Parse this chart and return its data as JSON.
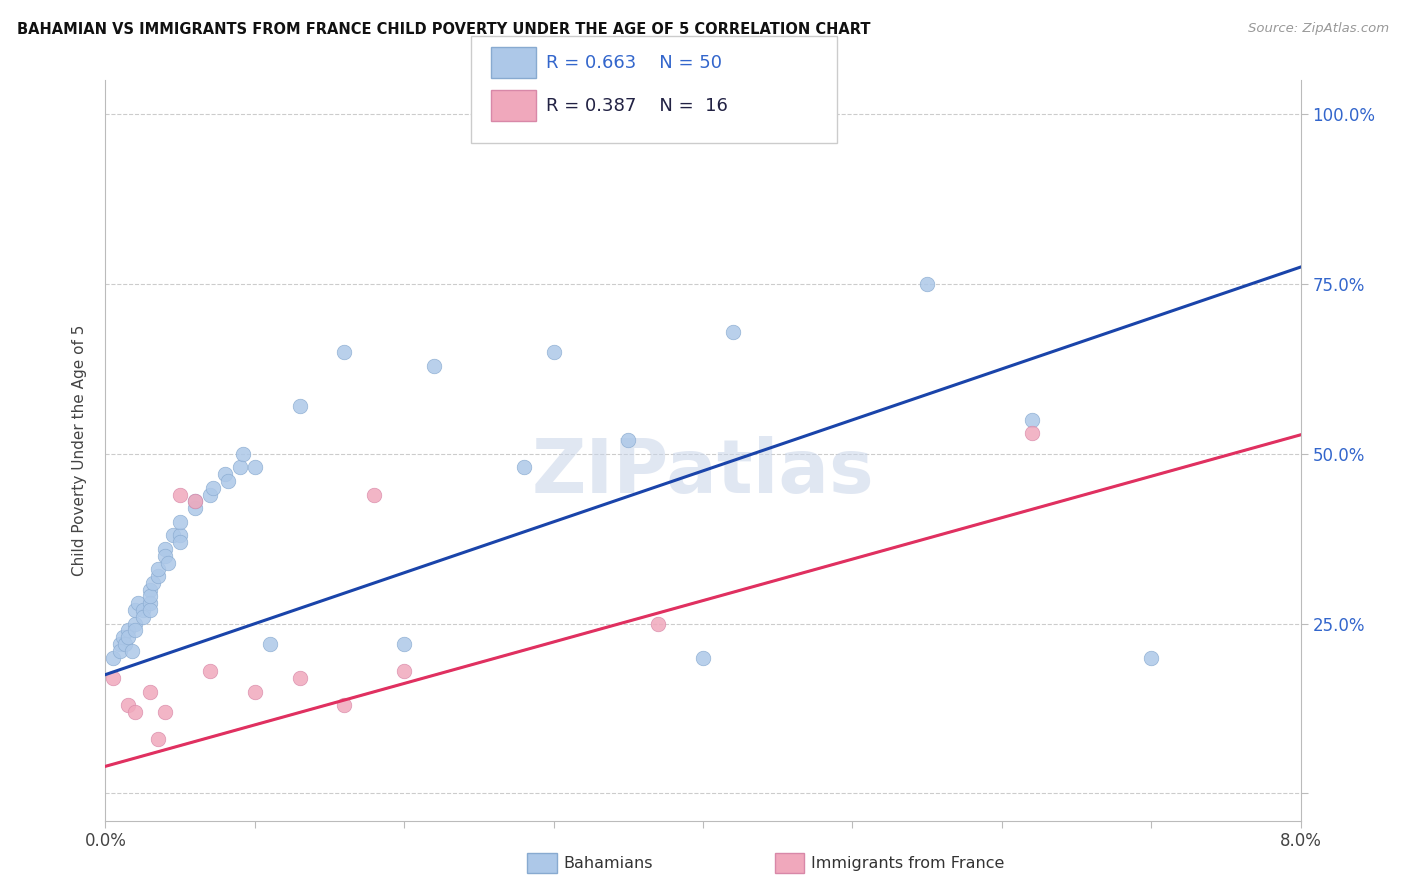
{
  "title": "BAHAMIAN VS IMMIGRANTS FROM FRANCE CHILD POVERTY UNDER THE AGE OF 5 CORRELATION CHART",
  "source": "Source: ZipAtlas.com",
  "ylabel": "Child Poverty Under the Age of 5",
  "xmin": 0.0,
  "xmax": 0.08,
  "ymin": -0.04,
  "ymax": 1.05,
  "yticks": [
    0.0,
    0.25,
    0.5,
    0.75,
    1.0
  ],
  "ytick_labels_right": [
    "",
    "25.0%",
    "50.0%",
    "75.0%",
    "100.0%"
  ],
  "xticks": [
    0.0,
    0.01,
    0.02,
    0.03,
    0.04,
    0.05,
    0.06,
    0.07,
    0.08
  ],
  "xtick_labels": [
    "0.0%",
    "",
    "",
    "",
    "",
    "",
    "",
    "",
    "8.0%"
  ],
  "blue_scatter_color": "#adc8e8",
  "blue_edge_color": "#88aad0",
  "blue_line_color": "#1a44aa",
  "pink_scatter_color": "#f0a8bc",
  "pink_edge_color": "#d888a8",
  "pink_line_color": "#e03060",
  "pink_dash_color": "#d4b0b8",
  "text_color_blue": "#3366cc",
  "text_color_dark": "#222244",
  "watermark": "ZIPatlas",
  "watermark_color": "#c8d4e8",
  "legend_r1": "R = 0.663",
  "legend_n1": "N = 50",
  "legend_r2": "R = 0.387",
  "legend_n2": "N =  16",
  "blue_intercept": 0.175,
  "blue_slope": 7.5,
  "pink_intercept": 0.04,
  "pink_slope": 6.1,
  "bahamians_x": [
    0.0005,
    0.001,
    0.001,
    0.0012,
    0.0013,
    0.0015,
    0.0015,
    0.0018,
    0.002,
    0.002,
    0.002,
    0.0022,
    0.0025,
    0.0025,
    0.003,
    0.003,
    0.003,
    0.003,
    0.0032,
    0.0035,
    0.0035,
    0.004,
    0.004,
    0.0042,
    0.0045,
    0.005,
    0.005,
    0.005,
    0.006,
    0.006,
    0.007,
    0.0072,
    0.008,
    0.0082,
    0.009,
    0.0092,
    0.01,
    0.011,
    0.013,
    0.016,
    0.02,
    0.022,
    0.028,
    0.03,
    0.035,
    0.04,
    0.042,
    0.055,
    0.062,
    0.07
  ],
  "bahamians_y": [
    0.2,
    0.22,
    0.21,
    0.23,
    0.22,
    0.24,
    0.23,
    0.21,
    0.25,
    0.27,
    0.24,
    0.28,
    0.27,
    0.26,
    0.3,
    0.28,
    0.27,
    0.29,
    0.31,
    0.32,
    0.33,
    0.36,
    0.35,
    0.34,
    0.38,
    0.38,
    0.4,
    0.37,
    0.42,
    0.43,
    0.44,
    0.45,
    0.47,
    0.46,
    0.48,
    0.5,
    0.48,
    0.22,
    0.57,
    0.65,
    0.22,
    0.63,
    0.48,
    0.65,
    0.52,
    0.2,
    0.68,
    0.75,
    0.55,
    0.2
  ],
  "france_x": [
    0.0005,
    0.0015,
    0.002,
    0.003,
    0.0035,
    0.004,
    0.005,
    0.006,
    0.007,
    0.01,
    0.013,
    0.016,
    0.018,
    0.02,
    0.037,
    0.062
  ],
  "france_y": [
    0.17,
    0.13,
    0.12,
    0.15,
    0.08,
    0.12,
    0.44,
    0.43,
    0.18,
    0.15,
    0.17,
    0.13,
    0.44,
    0.18,
    0.25,
    0.53
  ]
}
